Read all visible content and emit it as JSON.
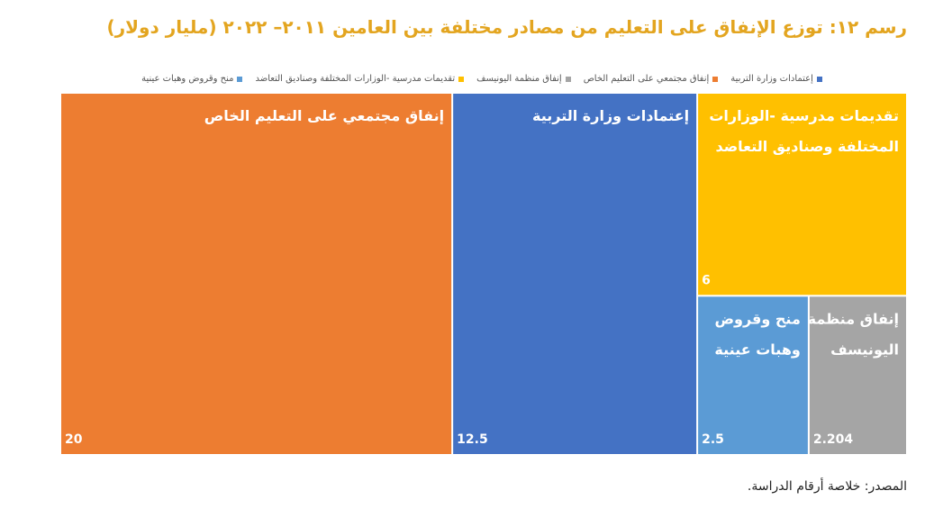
{
  "chart_data": {
    "type": "treemap",
    "title": "رسم ١٢: توزع  الإنفاق على التعليم من مصادر مختلفة بين العامين ٢٠١١– ٢٠٢٢ (مليار دولار)",
    "legend_position": "top",
    "series": [
      {
        "name": "إنفاق مجتمعي على التعليم الخاص",
        "label_lines": [
          "إنفاق مجتمعي على التعليم الخاص"
        ],
        "value": 20,
        "value_label": "20",
        "color": "#ED7D31"
      },
      {
        "name": "إعتمادات وزارة التربية",
        "label_lines": [
          "إعتمادات وزارة التربية"
        ],
        "value": 12.5,
        "value_label": "12.5",
        "color": "#4472C4"
      },
      {
        "name": "تقديمات مدرسية -الوزارات المختلفة وصناديق التعاضد",
        "label_lines": [
          "تقديمات مدرسية -الوزارات",
          "المختلفة وصناديق التعاضد"
        ],
        "value": 6,
        "value_label": "6",
        "color": "#FFC000"
      },
      {
        "name": "منح وقروض وهبات عينية",
        "label_lines": [
          "منح وقروض",
          "وهبات عينية"
        ],
        "value": 2.5,
        "value_label": "2.5",
        "color": "#5B9BD5"
      },
      {
        "name": "إنفاق منظمة اليونيسف",
        "label_lines": [
          "إنفاق منظمة",
          "اليونيسف"
        ],
        "value": 2.204,
        "value_label": "2.204",
        "color": "#A5A5A5"
      }
    ],
    "legend_order": [
      "إعتمادات وزارة التربية",
      "إنفاق مجتمعي على التعليم الخاص",
      "إنفاق منظمة اليونيسف",
      "تقديمات مدرسية -الوزارات المختلفة وصناديق التعاضد",
      "منح وقروض وهبات عينية"
    ]
  },
  "source": "المصدر: خلاصة أرقام الدراسة."
}
